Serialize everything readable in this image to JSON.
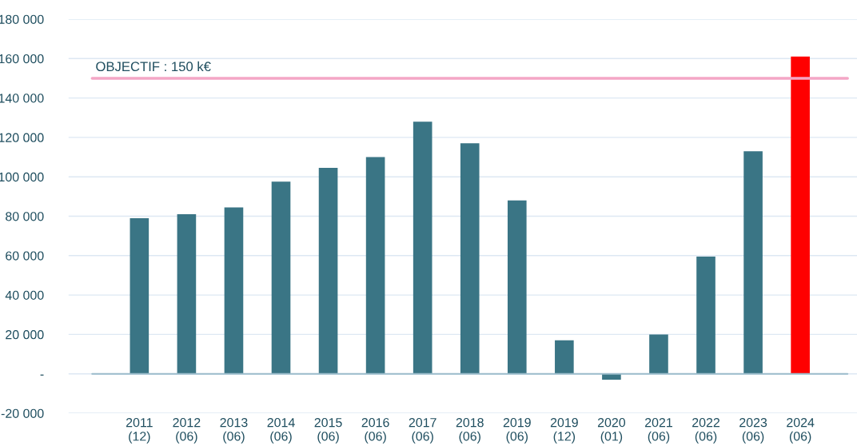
{
  "chart_data": {
    "type": "bar",
    "categories": [
      "2011\n(12)",
      "2012\n(06)",
      "2013\n(06)",
      "2014\n(06)",
      "2015\n(06)",
      "2016\n(06)",
      "2017\n(06)",
      "2018\n(06)",
      "2019\n(06)",
      "2019\n(12)",
      "2020\n(01)",
      "2021\n(06)",
      "2022\n(06)",
      "2023\n(06)",
      "2024\n(06)"
    ],
    "values": [
      79000,
      81000,
      84500,
      97500,
      104500,
      110000,
      128000,
      117000,
      88000,
      17000,
      -3000,
      20000,
      59500,
      113000,
      161000
    ],
    "colors": [
      "#3a7585",
      "#3a7585",
      "#3a7585",
      "#3a7585",
      "#3a7585",
      "#3a7585",
      "#3a7585",
      "#3a7585",
      "#3a7585",
      "#3a7585",
      "#3a7585",
      "#3a7585",
      "#3a7585",
      "#3a7585",
      "#ff0000"
    ],
    "ylim": [
      -20000,
      180000
    ],
    "yticks": [
      {
        "value": -20000,
        "label": "-20 000"
      },
      {
        "value": 0,
        "label": "-"
      },
      {
        "value": 20000,
        "label": "20 000"
      },
      {
        "value": 40000,
        "label": "40 000"
      },
      {
        "value": 60000,
        "label": "60 000"
      },
      {
        "value": 80000,
        "label": "80 000"
      },
      {
        "value": 100000,
        "label": "100 000"
      },
      {
        "value": 120000,
        "label": "120 000"
      },
      {
        "value": 140000,
        "label": "140 000"
      },
      {
        "value": 160000,
        "label": "160 000"
      },
      {
        "value": 180000,
        "label": "180 000"
      }
    ],
    "grid": "y",
    "legend": false,
    "ref_lines": [
      {
        "axis": "y",
        "value": 0,
        "label": null,
        "color": "#9bbccb",
        "line_style": "solid"
      },
      {
        "axis": "y",
        "value": 150000,
        "label": "OBJECTIF : 150 k€",
        "color": "#f4a6c6",
        "line_style": "solid"
      }
    ]
  }
}
